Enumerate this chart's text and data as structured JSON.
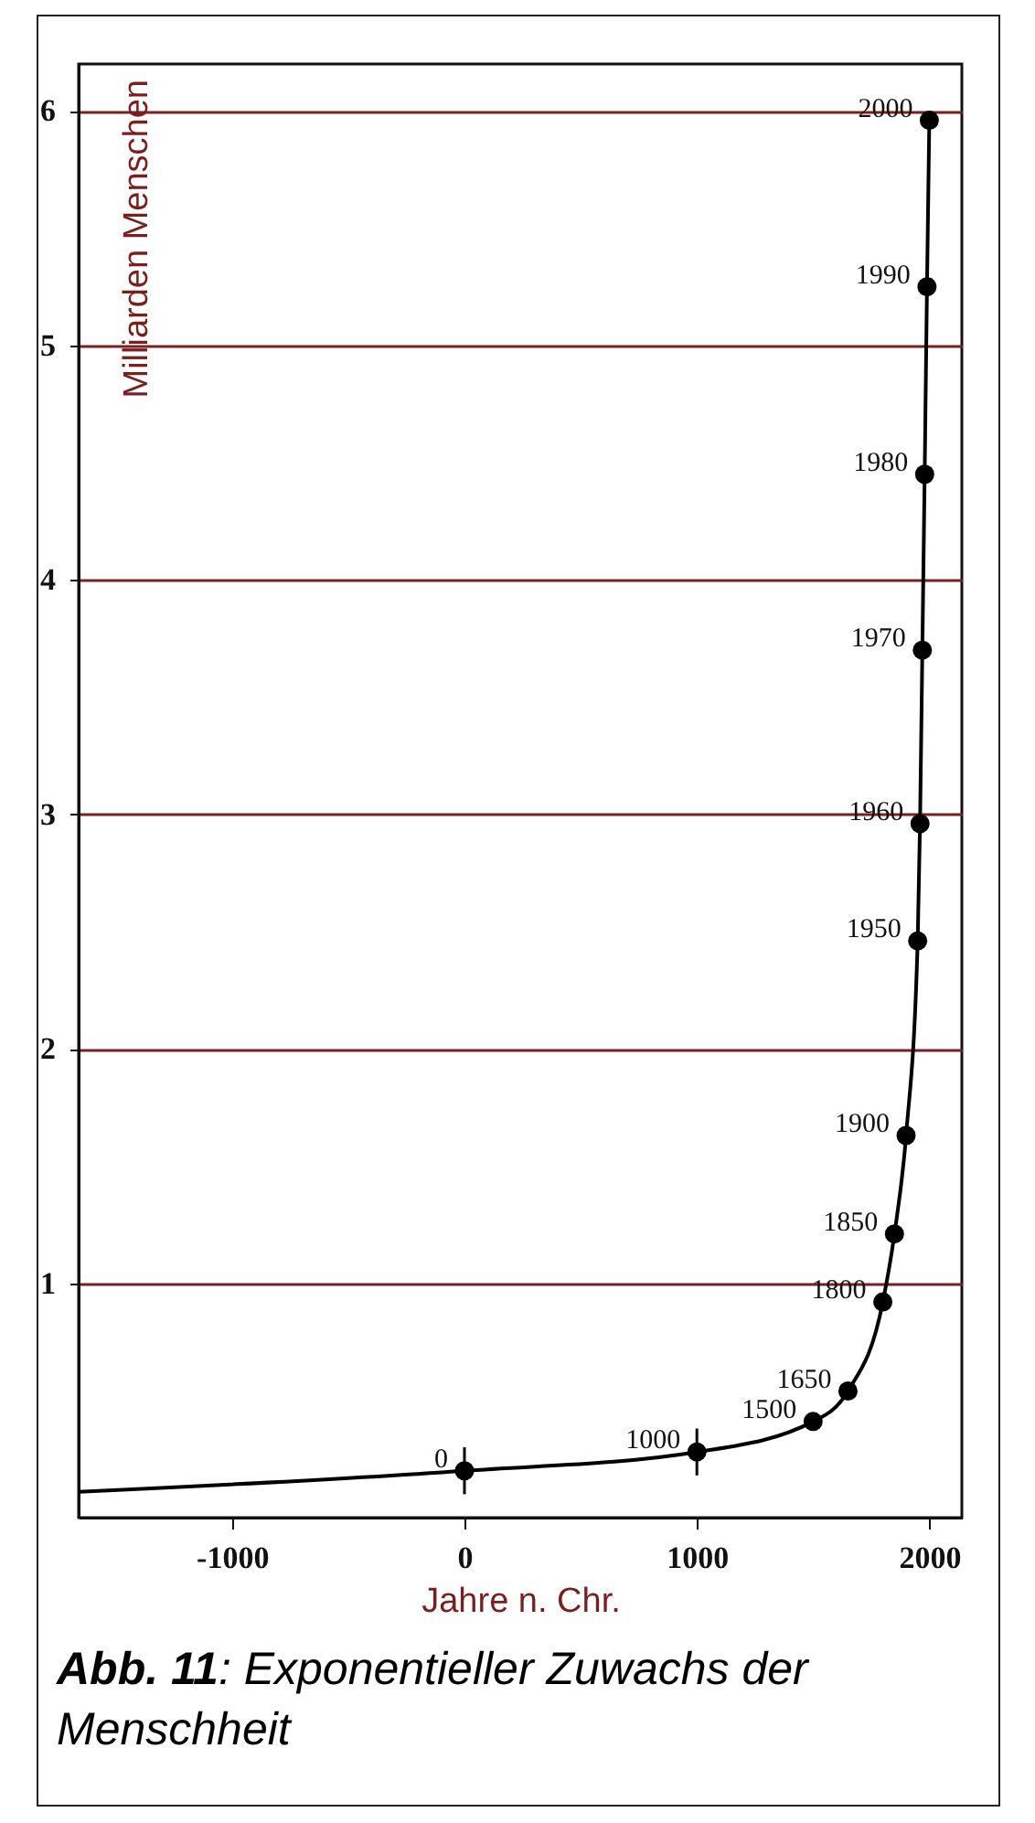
{
  "chart_data": {
    "type": "scatter",
    "xlabel": "Jahre n. Chr.",
    "ylabel": "Milliarden Menschen",
    "annotations": [
      "Abb. 11: Exponentieller Zuwachs der Menschheit",
      {
        "text": "0",
        "x": 0,
        "y": 0.2
      },
      {
        "text": "1000",
        "x": 1000,
        "y": 0.28
      },
      {
        "text": "1500",
        "x": 1500,
        "y": 0.41
      },
      {
        "text": "1650",
        "x": 1650,
        "y": 0.54
      },
      {
        "text": "1800",
        "x": 1800,
        "y": 0.92
      },
      {
        "text": "1850",
        "x": 1850,
        "y": 1.21
      },
      {
        "text": "1900",
        "x": 1900,
        "y": 1.63
      },
      {
        "text": "1950",
        "x": 1950,
        "y": 2.46
      },
      {
        "text": "1960",
        "x": 1960,
        "y": 2.96
      },
      {
        "text": "1970",
        "x": 1970,
        "y": 3.7
      },
      {
        "text": "1980",
        "x": 1980,
        "y": 4.45
      },
      {
        "text": "1990",
        "x": 1990,
        "y": 5.25
      },
      {
        "text": "2000",
        "x": 2000,
        "y": 5.96
      }
    ],
    "xlim": [
      -1660,
      2140
    ],
    "xticks": [
      -1000,
      0,
      1000,
      2000
    ],
    "ylim": [
      0,
      6.2
    ],
    "yticks": [
      1,
      2,
      3,
      4,
      5,
      6
    ],
    "grid": "y",
    "series": [
      {
        "type": "line",
        "color": "#000000",
        "marker": "none",
        "x": [
          -1660,
          0,
          1000,
          1500,
          1650,
          1800,
          1850,
          1900,
          1950,
          1960,
          1970,
          1980,
          1990,
          2000
        ],
        "values": [
          0.11,
          0.2,
          0.28,
          0.41,
          0.54,
          0.92,
          1.21,
          1.63,
          2.46,
          2.96,
          3.7,
          4.45,
          5.25,
          5.96
        ]
      },
      {
        "color": "#000000",
        "marker": "circle",
        "x": [
          0,
          1000,
          1500,
          1650,
          1800,
          1850,
          1900,
          1950,
          1960,
          1970,
          1980,
          1990,
          2000
        ],
        "values": [
          0.2,
          0.28,
          0.41,
          0.54,
          0.92,
          1.21,
          1.63,
          2.46,
          2.96,
          3.7,
          4.45,
          5.25,
          5.96
        ],
        "errors": [
          0.1,
          0.1,
          null,
          null,
          null,
          null,
          null,
          null,
          null,
          null,
          null,
          null,
          null
        ]
      }
    ]
  }
}
